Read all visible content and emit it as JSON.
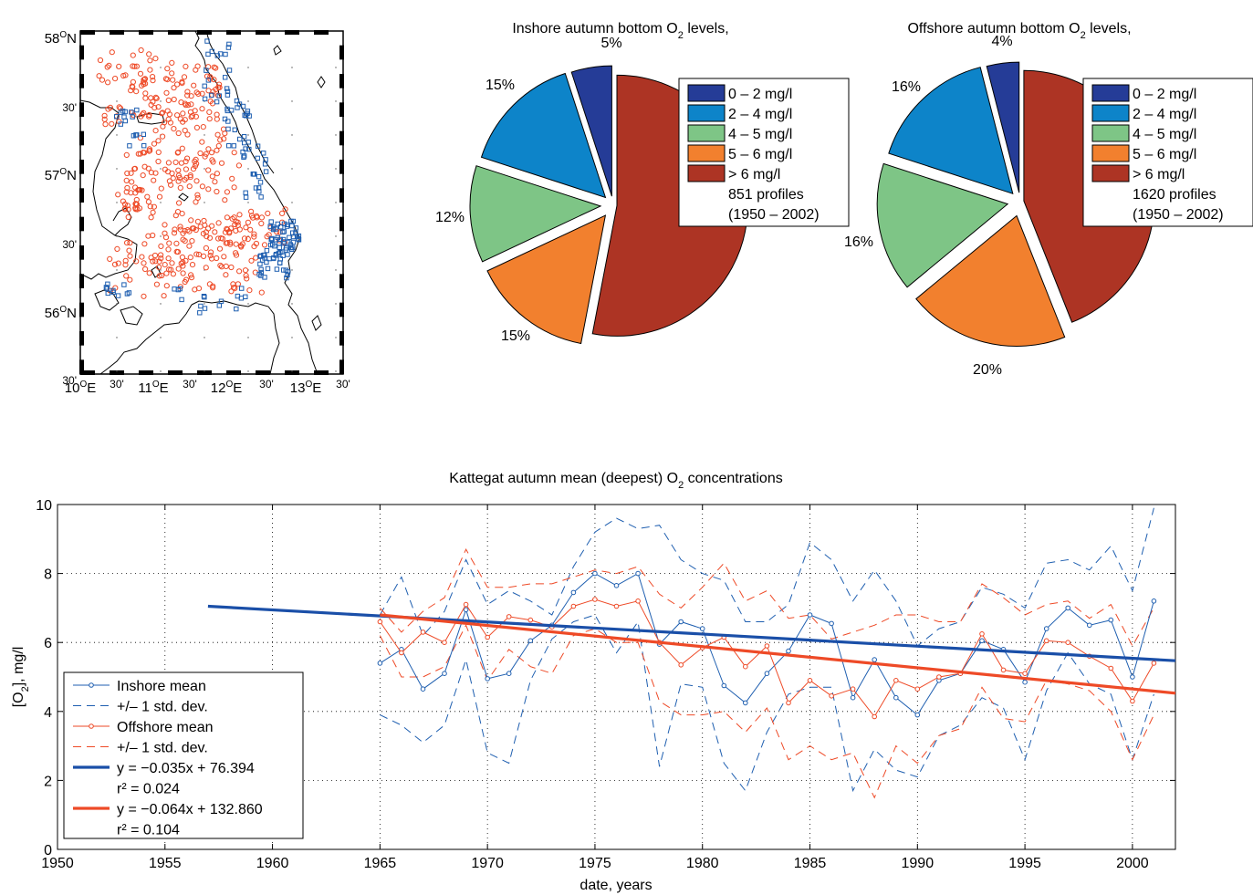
{
  "colors": {
    "inshore": "#1f5fb0",
    "offshore": "#ee4a27",
    "trend_inshore": "#1a4fa8",
    "trend_offshore": "#ee4a27",
    "class_0_2": "#253c97",
    "class_2_4": "#0d84c9",
    "class_4_5": "#7ec586",
    "class_5_6": "#f2802e",
    "class_gt6": "#ad3424"
  },
  "map": {
    "lat_labels": [
      {
        "deg": "58",
        "unit": "O",
        "suffix": "N"
      },
      {
        "deg": "30'",
        "unit": "",
        "suffix": ""
      },
      {
        "deg": "57",
        "unit": "O",
        "suffix": "N"
      },
      {
        "deg": "30'",
        "unit": "",
        "suffix": ""
      },
      {
        "deg": "56",
        "unit": "O",
        "suffix": "N"
      },
      {
        "deg": "30'",
        "unit": "",
        "suffix": ""
      }
    ],
    "lon_labels": [
      {
        "deg": "10",
        "unit": "O",
        "suffix": "E"
      },
      {
        "deg": "30'",
        "unit": "",
        "suffix": ""
      },
      {
        "deg": "11",
        "unit": "O",
        "suffix": "E"
      },
      {
        "deg": "30'",
        "unit": "",
        "suffix": ""
      },
      {
        "deg": "12",
        "unit": "O",
        "suffix": "E"
      },
      {
        "deg": "30'",
        "unit": "",
        "suffix": ""
      },
      {
        "deg": "13",
        "unit": "O",
        "suffix": "E"
      },
      {
        "deg": "30'",
        "unit": "",
        "suffix": ""
      }
    ]
  },
  "chart_data": [
    {
      "type": "pie",
      "title": "Inshore autumn bottom O",
      "title_sub": "2",
      "title_tail": " levels,",
      "legend": [
        "0 – 2 mg/l",
        "2 – 4 mg/l",
        "4 – 5 mg/l",
        "5 – 6 mg/l",
        "> 6 mg/l",
        "851 profiles",
        "(1950 – 2002)"
      ],
      "slices": [
        {
          "category": "0 – 2 mg/l",
          "value": 5,
          "label": "5%"
        },
        {
          "category": "2 – 4 mg/l",
          "value": 15,
          "label": "15%"
        },
        {
          "category": "4 – 5 mg/l",
          "value": 12,
          "label": "12%"
        },
        {
          "category": "5 – 6 mg/l",
          "value": 15,
          "label": "15%"
        },
        {
          "category": "> 6 mg/l",
          "value": 53,
          "label": ""
        }
      ]
    },
    {
      "type": "pie",
      "title": "Offshore autumn bottom O",
      "title_sub": "2",
      "title_tail": " levels,",
      "legend": [
        "0 – 2 mg/l",
        "2 – 4 mg/l",
        "4 – 5 mg/l",
        "5 – 6 mg/l",
        "> 6 mg/l",
        "1620 profiles",
        "(1950 – 2002)"
      ],
      "slices": [
        {
          "category": "0 – 2 mg/l",
          "value": 4,
          "label": "4%"
        },
        {
          "category": "2 – 4 mg/l",
          "value": 16,
          "label": "16%"
        },
        {
          "category": "4 – 5 mg/l",
          "value": 16,
          "label": "16%"
        },
        {
          "category": "5 – 6 mg/l",
          "value": 20,
          "label": "20%"
        },
        {
          "category": "> 6 mg/l",
          "value": 44,
          "label": ""
        }
      ]
    },
    {
      "type": "line",
      "title": "Kattegat autumn mean (deepest) O",
      "title_sub": "2",
      "title_tail": " concentrations",
      "xlabel": "date, years",
      "ylabel": "[O",
      "ylabel_sub": "2",
      "ylabel_tail": "], mg/l",
      "xlim": [
        1950,
        2002
      ],
      "ylim": [
        0,
        10
      ],
      "xticks": [
        1950,
        1955,
        1960,
        1965,
        1970,
        1975,
        1980,
        1985,
        1990,
        1995,
        2000
      ],
      "yticks": [
        0,
        2,
        4,
        6,
        8,
        10
      ],
      "grid": true,
      "legend_position": "bottom-left",
      "years": [
        1965,
        1966,
        1967,
        1968,
        1969,
        1970,
        1971,
        1972,
        1973,
        1974,
        1975,
        1976,
        1977,
        1978,
        1979,
        1980,
        1981,
        1982,
        1983,
        1984,
        1985,
        1986,
        1987,
        1988,
        1989,
        1990,
        1991,
        1992,
        1993,
        1994,
        1995,
        1996,
        1997,
        1998,
        1999,
        2000,
        2001
      ],
      "series": [
        {
          "name": "Inshore mean",
          "style": "solid-marker",
          "color_key": "inshore",
          "values": [
            5.4,
            5.8,
            4.65,
            5.1,
            6.95,
            4.95,
            5.1,
            6.05,
            6.5,
            7.45,
            8.0,
            7.65,
            8.0,
            5.95,
            6.6,
            6.4,
            4.75,
            4.25,
            5.1,
            5.75,
            6.8,
            6.55,
            4.4,
            5.5,
            4.4,
            3.9,
            4.9,
            5.1,
            6.05,
            5.8,
            4.85,
            6.4,
            7.0,
            6.5,
            6.65,
            5.0,
            7.2
          ]
        },
        {
          "name": "+/– 1 std. dev.",
          "style": "dashed",
          "color_key": "inshore",
          "upper": [
            6.8,
            7.9,
            6.2,
            6.9,
            8.4,
            7.1,
            7.5,
            7.2,
            6.8,
            8.2,
            9.2,
            9.6,
            9.3,
            9.4,
            8.4,
            8.0,
            7.8,
            6.6,
            6.6,
            7.1,
            8.9,
            8.4,
            7.2,
            8.1,
            7.2,
            5.9,
            6.4,
            6.6,
            7.6,
            7.4,
            7.0,
            8.3,
            8.4,
            8.1,
            8.8,
            7.5,
            9.9
          ],
          "lower": [
            3.9,
            3.6,
            3.1,
            3.6,
            5.5,
            2.8,
            2.5,
            4.9,
            6.1,
            6.6,
            6.8,
            5.7,
            6.6,
            2.4,
            4.8,
            4.7,
            2.5,
            1.7,
            3.4,
            4.5,
            4.7,
            4.7,
            1.7,
            2.9,
            2.3,
            2.1,
            3.3,
            3.6,
            4.4,
            4.1,
            2.6,
            4.6,
            5.7,
            4.8,
            4.5,
            2.6,
            4.5
          ]
        },
        {
          "name": "Offshore mean",
          "style": "solid-marker",
          "color_key": "offshore",
          "values": [
            6.6,
            5.7,
            6.3,
            6.0,
            7.1,
            6.15,
            6.75,
            6.65,
            6.45,
            7.05,
            7.25,
            7.05,
            7.2,
            6.0,
            5.35,
            5.85,
            6.15,
            5.3,
            5.9,
            4.25,
            4.9,
            4.45,
            4.65,
            3.85,
            4.9,
            4.65,
            5.0,
            5.1,
            6.25,
            5.2,
            5.1,
            6.05,
            6.0,
            5.6,
            5.25,
            4.3,
            5.4
          ]
        },
        {
          "name": "+/– 1 std. dev.",
          "style": "dashed",
          "color_key": "offshore",
          "upper": [
            7.0,
            6.3,
            6.9,
            7.3,
            8.7,
            7.6,
            7.6,
            7.7,
            7.7,
            7.9,
            8.1,
            8.0,
            8.2,
            7.4,
            7.0,
            7.6,
            8.3,
            7.2,
            7.5,
            6.7,
            6.8,
            6.1,
            6.3,
            6.5,
            6.8,
            6.8,
            6.6,
            6.6,
            7.7,
            7.3,
            6.8,
            7.1,
            7.2,
            6.7,
            7.1,
            5.9,
            7.0
          ],
          "lower": [
            6.2,
            5.0,
            5.0,
            5.3,
            6.5,
            4.9,
            5.8,
            5.3,
            5.1,
            6.2,
            6.4,
            6.0,
            6.0,
            4.3,
            3.9,
            3.9,
            4.0,
            3.4,
            4.1,
            2.6,
            3.0,
            2.6,
            2.8,
            1.5,
            3.0,
            2.5,
            3.3,
            3.5,
            4.7,
            3.8,
            3.7,
            4.9,
            4.8,
            4.6,
            4.0,
            2.6,
            3.9
          ]
        },
        {
          "name": "y = −0.035x + 76.394",
          "extra": "r² = 0.024",
          "style": "trend",
          "color_key": "trend_inshore",
          "x": [
            1957,
            2002
          ],
          "values": [
            7.05,
            5.47
          ]
        },
        {
          "name": "y = −0.064x + 132.860",
          "extra": "r² = 0.104",
          "style": "trend",
          "color_key": "trend_offshore",
          "x": [
            1965,
            2002
          ],
          "values": [
            6.8,
            4.53
          ]
        }
      ]
    }
  ]
}
